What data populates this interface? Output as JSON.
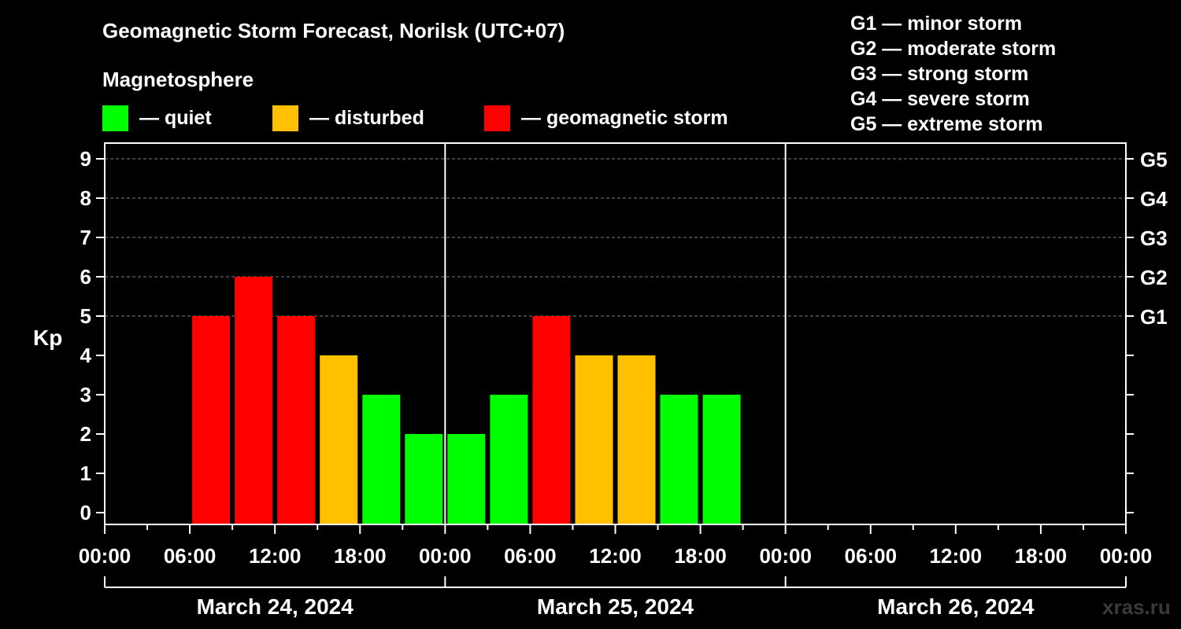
{
  "header": {
    "title": "Geomagnetic Storm Forecast, Norilsk (UTC+07)",
    "subtitle": "Magnetosphere"
  },
  "legend": [
    {
      "label": "— quiet",
      "color": "#00ff00"
    },
    {
      "label": "— disturbed",
      "color": "#ffc000"
    },
    {
      "label": "— geomagnetic storm",
      "color": "#ff0000"
    }
  ],
  "scale_legend": [
    "G1 — minor storm",
    "G2 — moderate storm",
    "G3 — strong storm",
    "G4 — severe storm",
    "G5 — extreme storm"
  ],
  "watermark": "xras.ru",
  "colors": {
    "quiet": "#00ff00",
    "disturbed": "#ffc000",
    "storm": "#ff0000",
    "background": "#000000",
    "axis": "#ffffff",
    "grid": "#808080"
  },
  "chart_data": {
    "type": "bar",
    "ylabel": "Kp",
    "ylim": [
      0,
      9
    ],
    "yticks": [
      "0",
      "1",
      "2",
      "3",
      "4",
      "5",
      "6",
      "7",
      "8",
      "9"
    ],
    "right_ticks": [
      {
        "kp": 5,
        "label": "G1"
      },
      {
        "kp": 6,
        "label": "G2"
      },
      {
        "kp": 7,
        "label": "G3"
      },
      {
        "kp": 8,
        "label": "G4"
      },
      {
        "kp": 9,
        "label": "G5"
      }
    ],
    "grid": "dashed horizontal at Kp 5-9",
    "xticks": [
      "00:00",
      "06:00",
      "12:00",
      "18:00",
      "00:00",
      "06:00",
      "12:00",
      "18:00",
      "00:00",
      "06:00",
      "12:00",
      "18:00",
      "00:00"
    ],
    "days": [
      "March 24, 2024",
      "March 25, 2024",
      "March 26, 2024"
    ],
    "interval_hours": 3,
    "bars": [
      {
        "start": "2024-03-24 06:00",
        "kp": 5,
        "level": "storm"
      },
      {
        "start": "2024-03-24 09:00",
        "kp": 6,
        "level": "storm"
      },
      {
        "start": "2024-03-24 12:00",
        "kp": 5,
        "level": "storm"
      },
      {
        "start": "2024-03-24 15:00",
        "kp": 4,
        "level": "disturbed"
      },
      {
        "start": "2024-03-24 18:00",
        "kp": 3,
        "level": "quiet"
      },
      {
        "start": "2024-03-24 21:00",
        "kp": 2,
        "level": "quiet"
      },
      {
        "start": "2024-03-25 00:00",
        "kp": 2,
        "level": "quiet"
      },
      {
        "start": "2024-03-25 03:00",
        "kp": 3,
        "level": "quiet"
      },
      {
        "start": "2024-03-25 06:00",
        "kp": 5,
        "level": "storm"
      },
      {
        "start": "2024-03-25 09:00",
        "kp": 4,
        "level": "disturbed"
      },
      {
        "start": "2024-03-25 12:00",
        "kp": 4,
        "level": "disturbed"
      },
      {
        "start": "2024-03-25 15:00",
        "kp": 3,
        "level": "quiet"
      },
      {
        "start": "2024-03-25 18:00",
        "kp": 3,
        "level": "quiet"
      }
    ]
  }
}
